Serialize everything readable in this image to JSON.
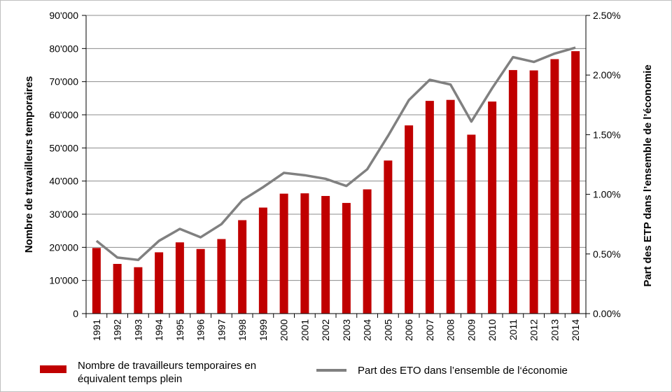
{
  "chart_data": {
    "type": "bar",
    "categories": [
      "1991",
      "1992",
      "1993",
      "1994",
      "1995",
      "1996",
      "1997",
      "1998",
      "1999",
      "2000",
      "2001",
      "2002",
      "2003",
      "2004",
      "2005",
      "2006",
      "2007",
      "2008",
      "2009",
      "2010",
      "2011",
      "2012",
      "2013",
      "2014"
    ],
    "series": [
      {
        "name": "Nombre de travailleurs temporaires en équivalent temps plein",
        "type": "bar",
        "axis": "left",
        "color": "#c00000",
        "values": [
          19800,
          15000,
          14000,
          18500,
          21500,
          19500,
          22500,
          28200,
          32000,
          36200,
          36300,
          35500,
          33400,
          37500,
          46200,
          56800,
          64200,
          64500,
          54000,
          64000,
          73500,
          73400,
          76800,
          79200
        ]
      },
      {
        "name": "Part des ETO dans l’ensemble de l‘économie",
        "type": "line",
        "axis": "right",
        "color": "#808080",
        "values": [
          0.61,
          0.47,
          0.45,
          0.61,
          0.71,
          0.64,
          0.75,
          0.95,
          1.06,
          1.18,
          1.16,
          1.13,
          1.07,
          1.21,
          1.49,
          1.79,
          1.96,
          1.92,
          1.61,
          1.89,
          2.15,
          2.11,
          2.18,
          2.23
        ]
      }
    ],
    "ylabel": "Nombre de travailleurs temporaires",
    "ylabel_right": "Part des ETP dans l’ensemble de l’économie",
    "ylim": [
      0,
      90000
    ],
    "ylim_right": [
      0,
      2.5
    ],
    "yticks": [
      "0",
      "10'000",
      "20'000",
      "30'000",
      "40'000",
      "50'000",
      "60'000",
      "70'000",
      "80'000",
      "90'000"
    ],
    "yticks_right": [
      "0.00%",
      "0.50%",
      "1.00%",
      "1.50%",
      "2.00%",
      "2.50%"
    ],
    "grid": true,
    "legend_position": "bottom"
  }
}
